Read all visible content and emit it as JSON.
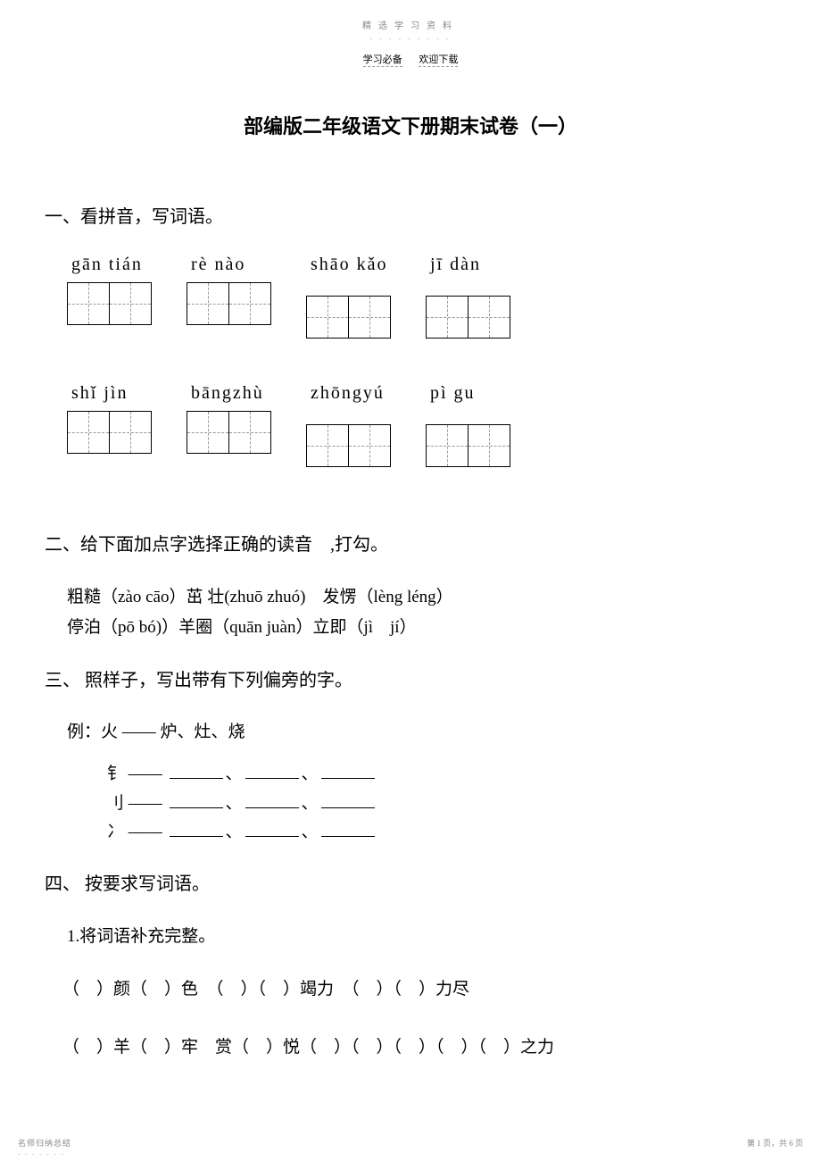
{
  "header": {
    "top": "精选学习资料",
    "sub_left": "学习必备",
    "sub_right": "欢迎下载"
  },
  "title": "部编版二年级语文下册期末试卷（一）",
  "section1": {
    "heading": "一、看拼音，写词语。",
    "row1": [
      {
        "pinyin": "gān tián",
        "boxes": 2,
        "offset": false
      },
      {
        "pinyin": "rè nào",
        "boxes": 2,
        "offset": false
      },
      {
        "pinyin": "shāo kǎo",
        "boxes": 2,
        "offset": true
      },
      {
        "pinyin": "jī  dàn",
        "boxes": 2,
        "offset": true
      }
    ],
    "row2": [
      {
        "pinyin": "shǐ jìn",
        "boxes": 2,
        "offset": false
      },
      {
        "pinyin": "bāngzhù",
        "boxes": 2,
        "offset": false
      },
      {
        "pinyin": "zhōngyú",
        "boxes": 2,
        "offset": true
      },
      {
        "pinyin": "pì  gu",
        "boxes": 2,
        "offset": true
      }
    ]
  },
  "section2": {
    "heading": "二、给下面加点字选择正确的读音　,打勾。",
    "line1": "粗糙（zào cāo）茁 壮(zhuō zhuó)　发愣（lèng léng）",
    "line2": "停泊（pō  bó)）羊圈（quān juàn）立即（jì　jí）"
  },
  "section3": {
    "heading": "三、 照样子，写出带有下列偏旁的字。",
    "example": "例：火 —— 炉、灶、烧",
    "radicals": [
      {
        "char": "钅",
        "sep": "——"
      },
      {
        "char": "刂",
        "sep": "——"
      },
      {
        "char": "冫",
        "sep": "——"
      }
    ]
  },
  "section4": {
    "heading": "四、 按要求写词语。",
    "sub": "1.将词语补充完整。",
    "line1": "（　）颜（　）色　（　）（　）竭力　（　）（　）力尽",
    "line2": "（　）羊（　）牢　赏（　）悦（　）（　）（　）（　）（　）之力"
  },
  "footer": {
    "left": "名师归纳总结",
    "right": "第 1 页，共 6 页"
  }
}
